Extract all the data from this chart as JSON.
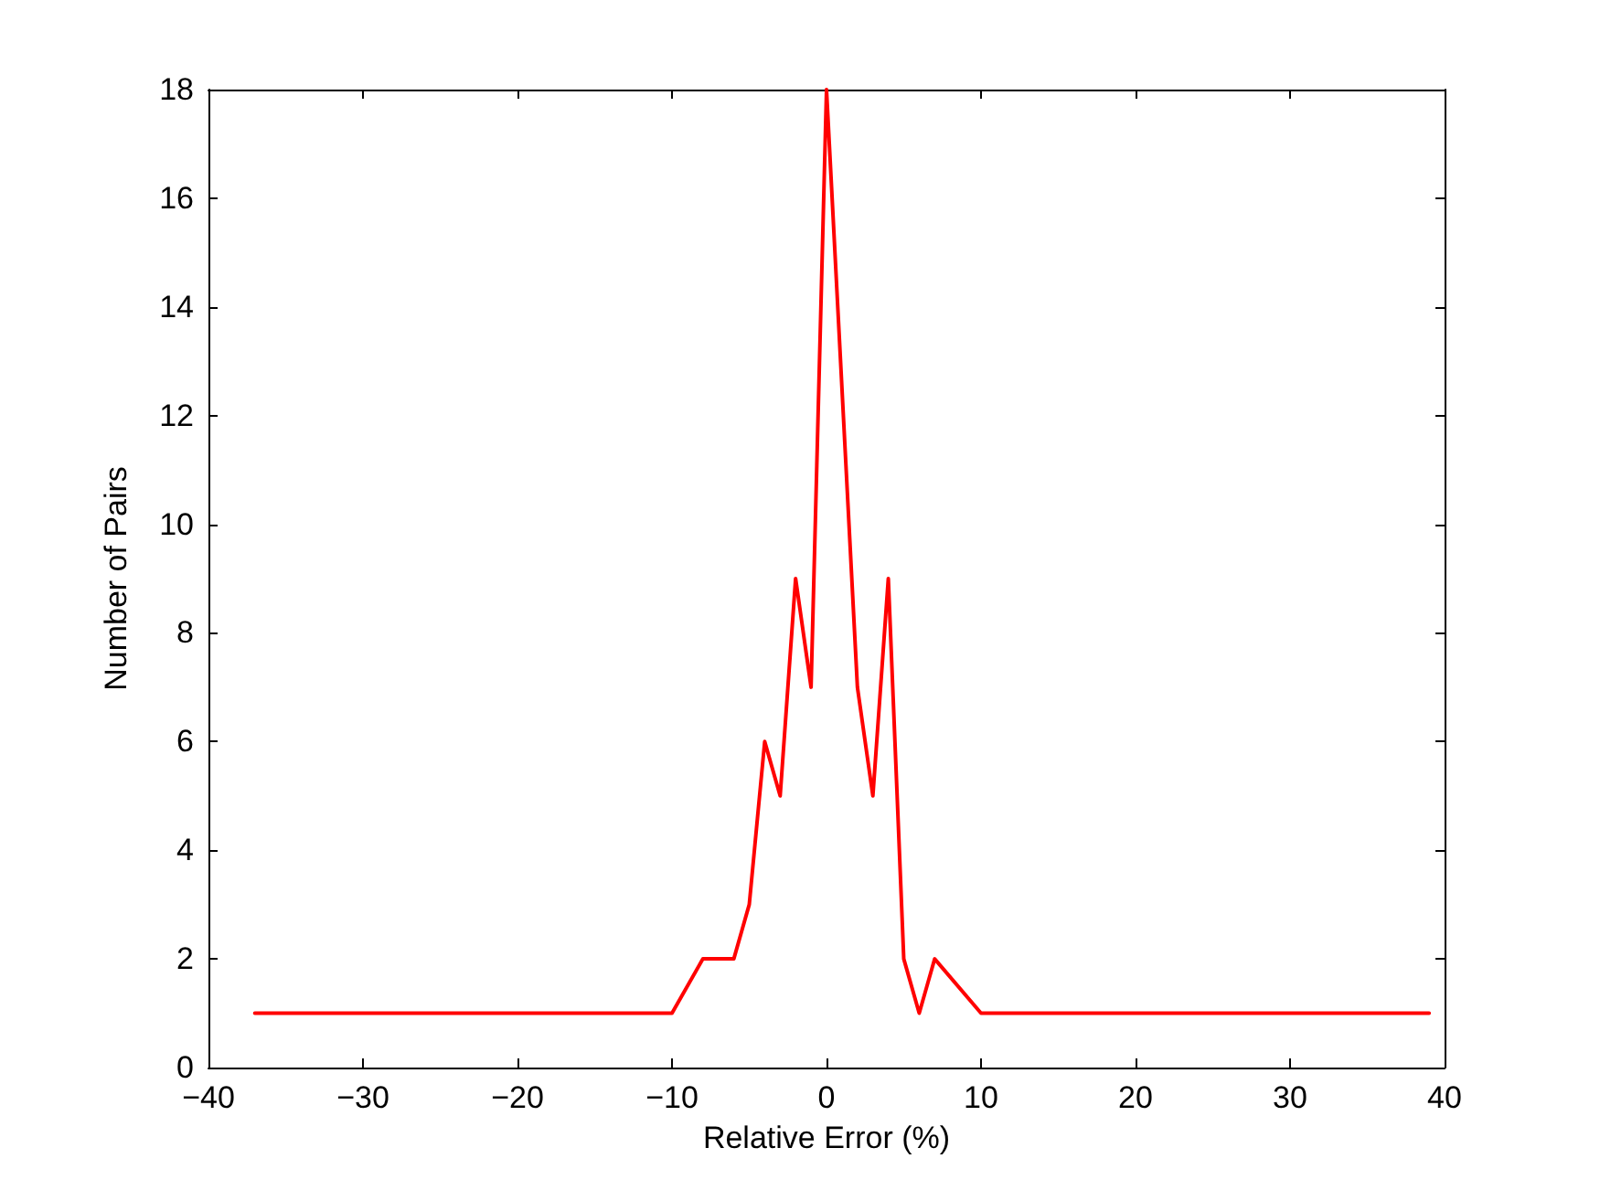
{
  "chart_data": {
    "type": "line",
    "xlabel": "Relative Error (%)",
    "ylabel": "Number of Pairs",
    "x": [
      -37,
      -10,
      -8,
      -6,
      -5,
      -4,
      -3,
      -2,
      -1,
      0,
      2,
      3,
      4,
      5,
      6,
      7,
      10,
      39
    ],
    "series": [
      {
        "color": "#ff0000",
        "values": [
          1,
          1,
          2,
          2,
          3,
          6,
          5,
          9,
          7,
          18,
          7,
          5,
          9,
          2,
          1,
          2,
          1,
          1
        ]
      }
    ],
    "xlim": [
      -40,
      40
    ],
    "xticks": [
      -40,
      -30,
      -20,
      -10,
      0,
      10,
      20,
      30,
      40
    ],
    "ylim": [
      0,
      18
    ],
    "yticks": [
      0,
      2,
      4,
      6,
      8,
      10,
      12,
      14,
      16,
      18
    ],
    "grid": false,
    "marker": "none",
    "line_style": "solid"
  }
}
